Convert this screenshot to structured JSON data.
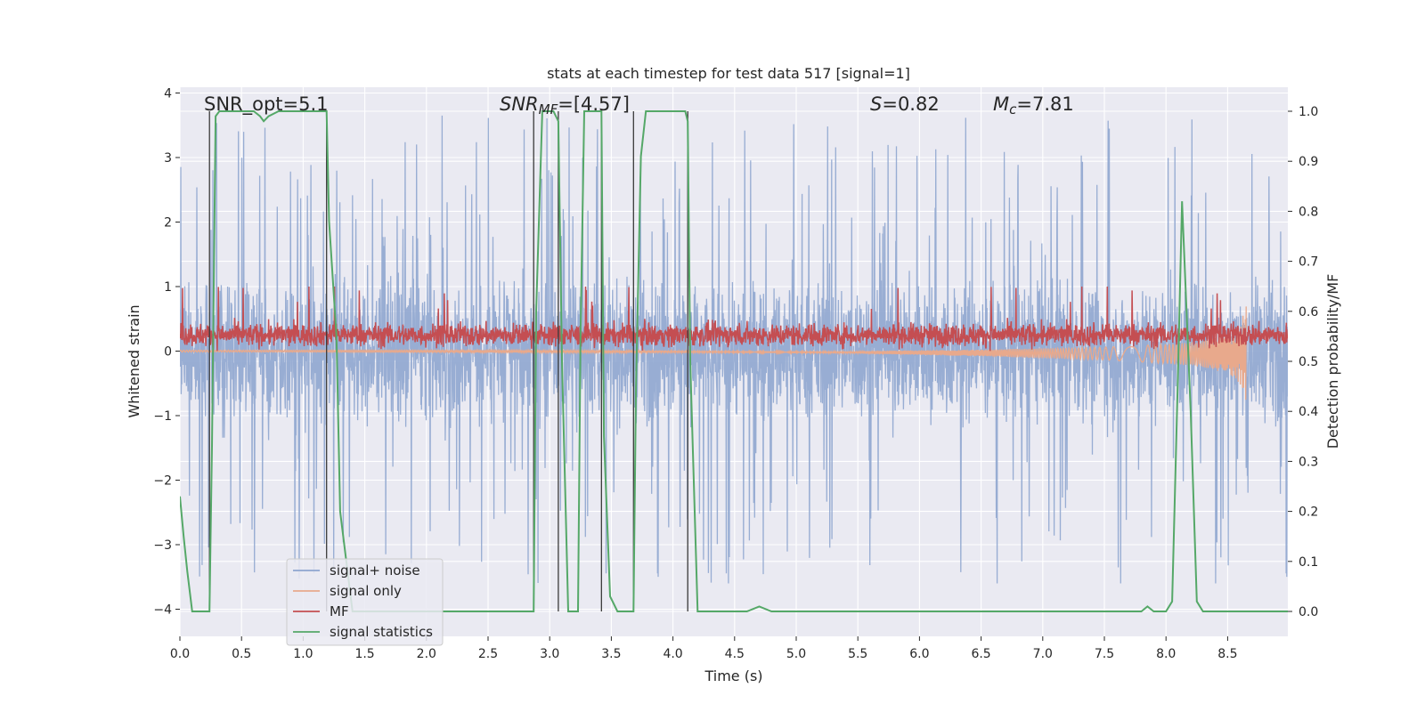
{
  "chart_data": {
    "type": "line",
    "title": "stats at each timestep for test data 517 [signal=1]",
    "xlabel": "Time (s)",
    "ylabel": "Whitened strain",
    "ylabel_right": "Detection probability/MF",
    "xlim": [
      0.0,
      9.0
    ],
    "ylim": [
      -4.35,
      4.1
    ],
    "ylim_right": [
      -0.05,
      1.04
    ],
    "xticks": [
      "0.0",
      "0.5",
      "1.0",
      "1.5",
      "2.0",
      "2.5",
      "3.0",
      "3.5",
      "4.0",
      "4.5",
      "5.0",
      "5.5",
      "6.0",
      "6.5",
      "7.0",
      "7.5",
      "8.0",
      "8.5"
    ],
    "xtick_values": [
      0,
      0.5,
      1,
      1.5,
      2,
      2.5,
      3,
      3.5,
      4,
      4.5,
      5,
      5.5,
      6,
      6.5,
      7,
      7.5,
      8,
      8.5
    ],
    "yticks": [
      "4",
      "3",
      "2",
      "1",
      "0",
      "−1",
      "−2",
      "−3",
      "−4"
    ],
    "ytick_values": [
      4,
      3,
      2,
      1,
      0,
      -1,
      -2,
      -3,
      -4
    ],
    "yticks_right": [
      "1.0",
      "0.9",
      "0.8",
      "0.7",
      "0.6",
      "0.5",
      "0.4",
      "0.3",
      "0.2",
      "0.1",
      "0.0"
    ],
    "ytick_right_values": [
      1.0,
      0.9,
      0.8,
      0.7,
      0.6,
      0.5,
      0.4,
      0.3,
      0.2,
      0.1,
      0.0
    ],
    "annotations": {
      "snr_opt": "SNR_opt=5.1",
      "snr_mf_sym": "SNR",
      "snr_mf_sub": "MF",
      "snr_mf_val": "=[4.57]",
      "s_sym": "S",
      "s_val": "=0.82",
      "mc_sym": "M",
      "mc_sub": "c",
      "mc_val": "=7.81"
    },
    "legend": {
      "position": "lower-left",
      "entries": [
        {
          "label": "signal+ noise",
          "color": "#8fa6cf"
        },
        {
          "label": "signal only",
          "color": "#e8a98c"
        },
        {
          "label": "MF",
          "color": "#c44e52"
        },
        {
          "label": "signal statistics",
          "color": "#55a868"
        }
      ]
    },
    "series": [
      {
        "name": "signal+ noise",
        "color": "#8fa6cf",
        "description": "whitened noise, amplitude envelope about ±1.5 with spikes to ±3.6",
        "envelope": [
          -1.6,
          1.6
        ],
        "spike_max": 3.7
      },
      {
        "name": "MF",
        "color": "#c44e52",
        "baseline": 0.25,
        "amplitude": 0.4
      },
      {
        "name": "signal only",
        "color": "#e8a98c",
        "description": "chirp growing until merger at 8.65 s",
        "x": [
          5.5,
          6.5,
          7.5,
          8.0,
          8.3,
          8.5,
          8.6,
          8.65
        ],
        "envelope": [
          0.02,
          0.05,
          0.1,
          0.15,
          0.2,
          0.3,
          0.45,
          0.75
        ]
      },
      {
        "name": "signal statistics",
        "color": "#55a868",
        "axis": "right",
        "x": [
          0.0,
          0.03,
          0.06,
          0.1,
          0.24,
          0.26,
          0.29,
          0.32,
          0.38,
          0.6,
          0.65,
          0.68,
          0.72,
          0.8,
          1.0,
          1.19,
          1.21,
          1.27,
          1.3,
          1.4,
          1.5,
          2.5,
          2.87,
          2.89,
          2.94,
          2.98,
          3.03,
          3.07,
          3.1,
          3.15,
          3.23,
          3.25,
          3.28,
          3.34,
          3.42,
          3.44,
          3.49,
          3.55,
          3.62,
          3.68,
          3.7,
          3.74,
          3.78,
          4.0,
          4.1,
          4.12,
          4.14,
          4.2,
          4.6,
          4.7,
          4.8,
          7.8,
          7.85,
          7.9,
          8.0,
          8.05,
          8.1,
          8.13,
          8.2,
          8.25,
          8.3,
          9.0
        ],
        "y": [
          0.23,
          0.15,
          0.08,
          0.0,
          0.0,
          0.33,
          0.99,
          1.0,
          1.0,
          1.0,
          0.99,
          0.98,
          0.99,
          1.0,
          1.0,
          1.0,
          0.78,
          0.55,
          0.2,
          0.0,
          0.0,
          0.0,
          0.0,
          0.6,
          1.0,
          1.0,
          1.0,
          0.98,
          0.5,
          0.0,
          0.0,
          0.55,
          1.0,
          1.0,
          1.0,
          0.35,
          0.03,
          0.0,
          0.0,
          0.0,
          0.45,
          0.91,
          1.0,
          1.0,
          1.0,
          0.98,
          0.5,
          0.0,
          0.0,
          0.01,
          0.0,
          0.0,
          0.01,
          0.0,
          0.0,
          0.02,
          0.5,
          0.82,
          0.4,
          0.02,
          0.0,
          0.0
        ]
      },
      {
        "name": "vertical markers",
        "color": "#3a3a3a",
        "x": [
          0.24,
          1.19,
          2.87,
          3.07,
          3.42,
          3.68,
          4.12
        ]
      }
    ]
  }
}
